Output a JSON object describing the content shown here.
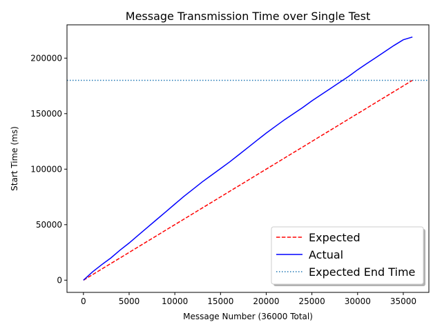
{
  "chart_data": {
    "type": "line",
    "title": "Message Transmission Time over Single Test",
    "xlabel": "Message Number (36000 Total)",
    "ylabel": "Start Time (ms)",
    "xlim": [
      -1800,
      37800
    ],
    "ylim": [
      -11000,
      230000
    ],
    "x_ticks": [
      0,
      5000,
      10000,
      15000,
      20000,
      25000,
      30000,
      35000
    ],
    "x_tick_labels": [
      "0",
      "5000",
      "10000",
      "15000",
      "20000",
      "25000",
      "30000",
      "35000"
    ],
    "y_ticks": [
      0,
      50000,
      100000,
      150000,
      200000
    ],
    "y_tick_labels": [
      "0",
      "50000",
      "100000",
      "150000",
      "200000"
    ],
    "grid": false,
    "legend_position": "lower-right",
    "series": [
      {
        "name": "Expected",
        "style": "dashed",
        "color": "#ff0000",
        "x": [
          0,
          36000
        ],
        "y": [
          0,
          180000
        ]
      },
      {
        "name": "Actual",
        "style": "solid",
        "color": "#0000ff",
        "x": [
          0,
          1000,
          2000,
          3000,
          4000,
          5000,
          6000,
          7000,
          8000,
          9000,
          10000,
          11000,
          12000,
          13000,
          14000,
          15000,
          16000,
          17000,
          18000,
          19000,
          20000,
          21000,
          22000,
          23000,
          24000,
          25000,
          26000,
          27000,
          28000,
          29000,
          30000,
          31000,
          32000,
          33000,
          34000,
          35000,
          36000
        ],
        "y": [
          0,
          7500,
          14000,
          20000,
          27000,
          33500,
          40500,
          47500,
          54500,
          61500,
          68500,
          75500,
          82000,
          88500,
          94500,
          100500,
          106500,
          113000,
          119500,
          126000,
          132500,
          138500,
          144500,
          150000,
          155500,
          161500,
          167000,
          172500,
          178000,
          183500,
          189500,
          195000,
          200500,
          206000,
          211500,
          216500,
          219000
        ]
      },
      {
        "name": "Expected End Time",
        "style": "dotted",
        "color": "#1f77b4",
        "orientation": "horizontal",
        "y_value": 180000
      }
    ]
  }
}
